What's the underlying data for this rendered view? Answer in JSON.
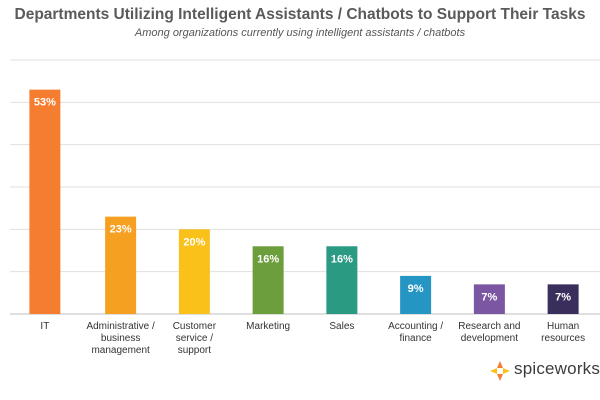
{
  "header": {
    "title": "Departments Utilizing Intelligent Assistants / Chatbots to Support Their Tasks",
    "subtitle": "Among organizations currently using intelligent assistants / chatbots"
  },
  "chart_data": {
    "type": "bar",
    "title": "Departments Utilizing Intelligent Assistants / Chatbots to Support Their Tasks",
    "subtitle": "Among organizations currently using intelligent assistants / chatbots",
    "xlabel": "",
    "ylabel": "",
    "ylim": [
      0,
      60
    ],
    "grid": true,
    "categories": [
      [
        "IT"
      ],
      [
        "Administrative /",
        "business",
        "management"
      ],
      [
        "Customer",
        "service /",
        "support"
      ],
      [
        "Marketing"
      ],
      [
        "Sales"
      ],
      [
        "Accounting /",
        "finance"
      ],
      [
        "Research and",
        "development"
      ],
      [
        "Human",
        "resources"
      ]
    ],
    "values": [
      53,
      23,
      20,
      16,
      16,
      9,
      7,
      7
    ],
    "data_labels": [
      "53%",
      "23%",
      "20%",
      "16%",
      "16%",
      "9%",
      "7%",
      "7%"
    ],
    "colors": [
      "#f47d30",
      "#f6a021",
      "#f9c11a",
      "#6c9e3c",
      "#2a9a83",
      "#2595c4",
      "#7a56a3",
      "#3a2e5c"
    ]
  },
  "logo": {
    "text": "spiceworks",
    "icon": "spiceworks-logo-icon",
    "colors": [
      "#f47d30",
      "#f9c11a"
    ]
  }
}
